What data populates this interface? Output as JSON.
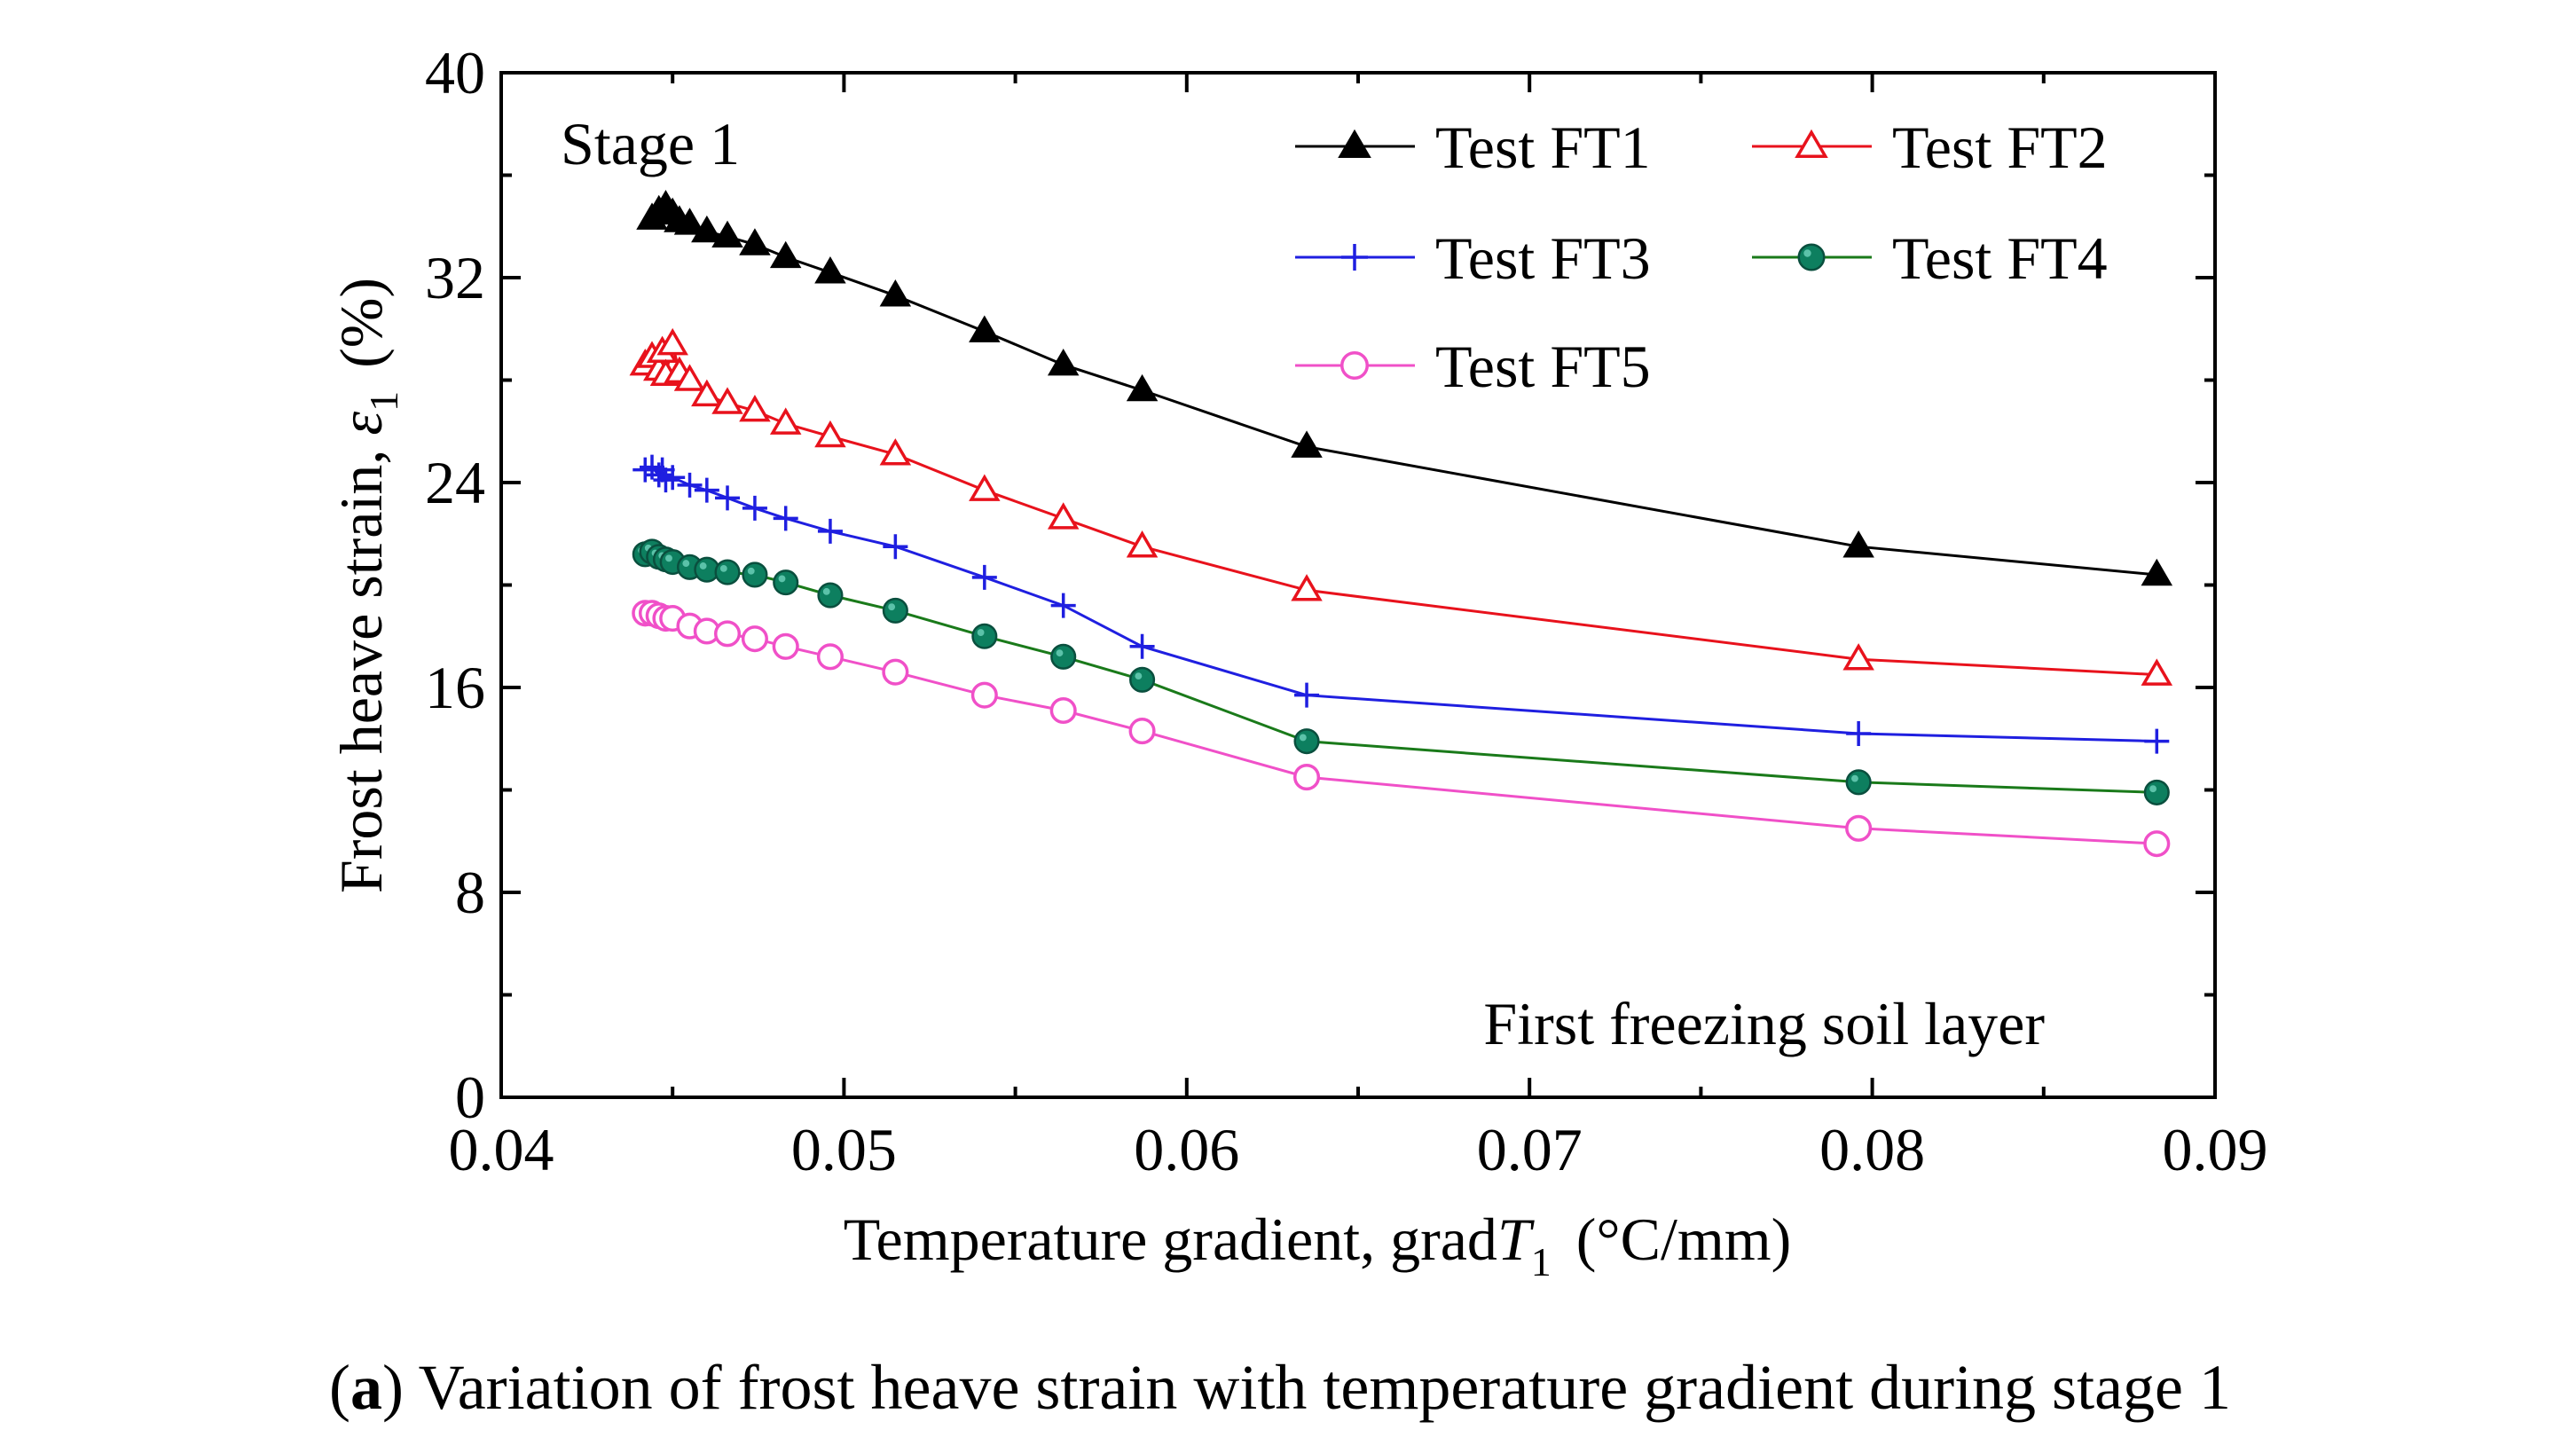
{
  "chart_data": {
    "type": "line",
    "title": "",
    "xlabel": "Temperature gradient, grad",
    "xlabel_symbol": "T",
    "xlabel_subscript": "1",
    "xlabel_unit": "(°C/mm)",
    "ylabel": "Frost heave strain,",
    "ylabel_symbol": "ε",
    "ylabel_subscript": "1",
    "ylabel_unit": "(%)",
    "xlim": [
      0.04,
      0.09
    ],
    "ylim": [
      0,
      40
    ],
    "xticks": [
      0.04,
      0.05,
      0.06,
      0.07,
      0.08,
      0.09
    ],
    "xtick_labels": [
      "0.04",
      "0.05",
      "0.06",
      "0.07",
      "0.08",
      "0.09"
    ],
    "yticks": [
      0,
      8,
      16,
      24,
      32,
      40
    ],
    "ytick_labels": [
      "0",
      "8",
      "16",
      "24",
      "32",
      "40"
    ],
    "grid": false,
    "legend_position": "top-right",
    "annotations": [
      "Stage 1",
      "First freezing soil layer"
    ],
    "series": [
      {
        "name": "Test FT1",
        "color": "#000000",
        "marker": "triangle-filled",
        "points": [
          [
            0.0444,
            34.3
          ],
          [
            0.0446,
            34.6
          ],
          [
            0.0448,
            34.8
          ],
          [
            0.045,
            34.5
          ],
          [
            0.0452,
            34.2
          ],
          [
            0.0455,
            34.1
          ],
          [
            0.046,
            33.8
          ],
          [
            0.0466,
            33.6
          ],
          [
            0.0474,
            33.3
          ],
          [
            0.0483,
            32.8
          ],
          [
            0.0496,
            32.2
          ],
          [
            0.0515,
            31.3
          ],
          [
            0.0541,
            29.9
          ],
          [
            0.0564,
            28.6
          ],
          [
            0.0587,
            27.6
          ],
          [
            0.0635,
            25.4
          ],
          [
            0.0796,
            21.5
          ],
          [
            0.0883,
            20.4
          ]
        ]
      },
      {
        "name": "Test FT2",
        "color": "#e8121c",
        "marker": "triangle-open",
        "points": [
          [
            0.0442,
            28.6
          ],
          [
            0.0444,
            28.9
          ],
          [
            0.0446,
            28.4
          ],
          [
            0.0447,
            29.1
          ],
          [
            0.0448,
            28.2
          ],
          [
            0.045,
            29.4
          ],
          [
            0.0452,
            28.3
          ],
          [
            0.0455,
            28.0
          ],
          [
            0.046,
            27.4
          ],
          [
            0.0466,
            27.1
          ],
          [
            0.0474,
            26.8
          ],
          [
            0.0483,
            26.3
          ],
          [
            0.0496,
            25.8
          ],
          [
            0.0515,
            25.1
          ],
          [
            0.0541,
            23.7
          ],
          [
            0.0564,
            22.6
          ],
          [
            0.0587,
            21.5
          ],
          [
            0.0635,
            19.8
          ],
          [
            0.0796,
            17.1
          ],
          [
            0.0883,
            16.5
          ]
        ]
      },
      {
        "name": "Test FT3",
        "color": "#1f1fe0",
        "marker": "plus",
        "points": [
          [
            0.0442,
            24.5
          ],
          [
            0.0444,
            24.6
          ],
          [
            0.0446,
            24.3
          ],
          [
            0.0447,
            24.5
          ],
          [
            0.0448,
            24.1
          ],
          [
            0.045,
            24.2
          ],
          [
            0.0455,
            23.9
          ],
          [
            0.046,
            23.7
          ],
          [
            0.0466,
            23.4
          ],
          [
            0.0474,
            23.0
          ],
          [
            0.0483,
            22.6
          ],
          [
            0.0496,
            22.1
          ],
          [
            0.0515,
            21.5
          ],
          [
            0.0541,
            20.3
          ],
          [
            0.0564,
            19.2
          ],
          [
            0.0587,
            17.6
          ],
          [
            0.0635,
            15.7
          ],
          [
            0.0796,
            14.2
          ],
          [
            0.0883,
            13.9
          ]
        ]
      },
      {
        "name": "Test FT4",
        "color": "#0d7f5f",
        "line_color": "#1a7a1a",
        "marker": "circle-filled",
        "points": [
          [
            0.0442,
            21.2
          ],
          [
            0.0444,
            21.3
          ],
          [
            0.0446,
            21.1
          ],
          [
            0.0448,
            21.0
          ],
          [
            0.045,
            20.9
          ],
          [
            0.0455,
            20.7
          ],
          [
            0.046,
            20.6
          ],
          [
            0.0466,
            20.5
          ],
          [
            0.0474,
            20.4
          ],
          [
            0.0483,
            20.1
          ],
          [
            0.0496,
            19.6
          ],
          [
            0.0515,
            19.0
          ],
          [
            0.0541,
            18.0
          ],
          [
            0.0564,
            17.2
          ],
          [
            0.0587,
            16.3
          ],
          [
            0.0635,
            13.9
          ],
          [
            0.0796,
            12.3
          ],
          [
            0.0883,
            11.9
          ]
        ]
      },
      {
        "name": "Test FT5",
        "color": "#f050c8",
        "marker": "circle-open",
        "points": [
          [
            0.0442,
            18.9
          ],
          [
            0.0444,
            18.9
          ],
          [
            0.0446,
            18.8
          ],
          [
            0.0448,
            18.7
          ],
          [
            0.045,
            18.7
          ],
          [
            0.0455,
            18.4
          ],
          [
            0.046,
            18.2
          ],
          [
            0.0466,
            18.1
          ],
          [
            0.0474,
            17.9
          ],
          [
            0.0483,
            17.6
          ],
          [
            0.0496,
            17.2
          ],
          [
            0.0515,
            16.6
          ],
          [
            0.0541,
            15.7
          ],
          [
            0.0564,
            15.1
          ],
          [
            0.0587,
            14.3
          ],
          [
            0.0635,
            12.5
          ],
          [
            0.0796,
            10.5
          ],
          [
            0.0883,
            9.9
          ]
        ]
      }
    ]
  },
  "caption": {
    "bold_letter": "a",
    "text": "Variation of frost heave strain with temperature gradient during stage 1"
  }
}
